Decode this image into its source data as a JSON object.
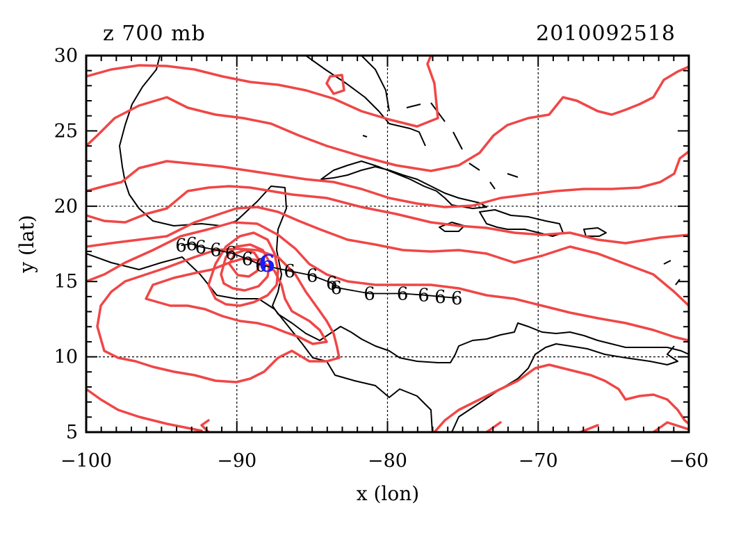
{
  "header": {
    "field_label": "z 700 mb",
    "datetime": "2010092518"
  },
  "axes": {
    "xlabel": "x (lon)",
    "ylabel": "y (lat)",
    "xlim": [
      -100,
      -60
    ],
    "ylim": [
      5,
      30
    ],
    "xticks": [
      -100,
      -90,
      -80,
      -70,
      -60
    ],
    "yticks": [
      5,
      10,
      15,
      20,
      25,
      30
    ],
    "xtick_labels": [
      "−100",
      "−90",
      "−80",
      "−70",
      "−60"
    ],
    "ytick_labels": [
      "5",
      "10",
      "15",
      "20",
      "25",
      "30"
    ],
    "grid_x": [
      -90,
      -80,
      -70
    ],
    "grid_y": [
      10,
      20
    ]
  },
  "colors": {
    "contour": "#f04646",
    "coast": "#000000",
    "current_position": "#1a1aff"
  },
  "storm_track": {
    "symbol": "6",
    "points": [
      {
        "lon": -75.4,
        "lat": 13.9
      },
      {
        "lon": -76.5,
        "lat": 14.0
      },
      {
        "lon": -77.6,
        "lat": 14.1
      },
      {
        "lon": -79.0,
        "lat": 14.2
      },
      {
        "lon": -81.2,
        "lat": 14.2
      },
      {
        "lon": -83.4,
        "lat": 14.6
      },
      {
        "lon": -83.7,
        "lat": 14.9
      },
      {
        "lon": -85.0,
        "lat": 15.4
      },
      {
        "lon": -86.5,
        "lat": 15.7
      },
      {
        "lon": -88.4,
        "lat": 16.1
      },
      {
        "lon": -89.3,
        "lat": 16.5
      },
      {
        "lon": -90.4,
        "lat": 16.9
      },
      {
        "lon": -91.4,
        "lat": 17.1
      },
      {
        "lon": -92.4,
        "lat": 17.3
      },
      {
        "lon": -93.0,
        "lat": 17.5
      },
      {
        "lon": -93.7,
        "lat": 17.4
      }
    ],
    "current": {
      "lon": -88.0,
      "lat": 16.2
    }
  }
}
